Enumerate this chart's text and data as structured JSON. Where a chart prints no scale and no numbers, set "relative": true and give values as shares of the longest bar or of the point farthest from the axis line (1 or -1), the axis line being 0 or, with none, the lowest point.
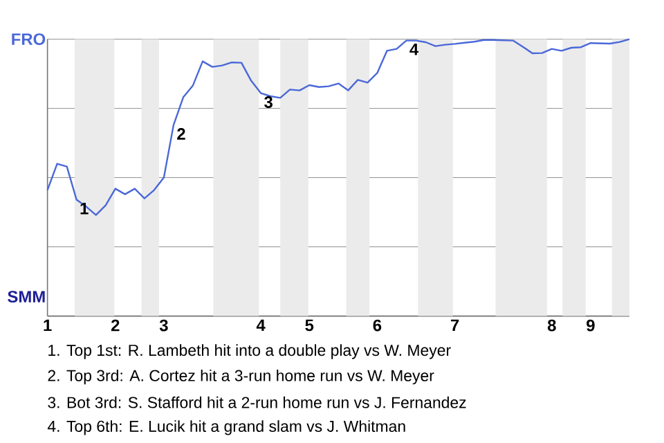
{
  "chart_data": {
    "type": "line",
    "relative": true,
    "categories": [
      "1",
      null,
      null,
      null,
      null,
      null,
      null,
      "2",
      null,
      null,
      null,
      null,
      "3",
      null,
      null,
      null,
      null,
      null,
      null,
      null,
      null,
      null,
      "4",
      null,
      null,
      null,
      null,
      "5",
      null,
      null,
      null,
      null,
      null,
      null,
      "6",
      null,
      null,
      null,
      null,
      null,
      null,
      null,
      "7",
      null,
      null,
      null,
      null,
      null,
      null,
      null,
      null,
      null,
      "8",
      null,
      null,
      null,
      "9",
      null,
      null,
      null,
      null
    ],
    "series": [
      {
        "color": "#4a68d8",
        "values": [
          0.455,
          0.55,
          0.54,
          0.42,
          0.395,
          0.365,
          0.4,
          0.46,
          0.44,
          0.46,
          0.425,
          0.455,
          0.5,
          0.69,
          0.79,
          0.833,
          0.92,
          0.9,
          0.905,
          0.916,
          0.915,
          0.85,
          0.805,
          0.794,
          0.788,
          0.818,
          0.815,
          0.834,
          0.827,
          0.83,
          0.84,
          0.815,
          0.853,
          0.843,
          0.878,
          0.958,
          0.965,
          0.995,
          0.995,
          0.989,
          0.975,
          0.98,
          0.983,
          0.987,
          0.991,
          0.997,
          0.997,
          0.996,
          0.995,
          0.973,
          0.949,
          0.95,
          0.965,
          0.958,
          0.969,
          0.971,
          0.986,
          0.985,
          0.984,
          0.99,
          1
        ]
      }
    ],
    "grid": "y",
    "marker": "none",
    "line_style": "solid",
    "annotations": [
      "FRO",
      "SMM",
      {
        "text": "1",
        "y": 0.42
      },
      {
        "text": "2",
        "y": 0.69
      },
      {
        "text": "3",
        "y": 0.805
      },
      {
        "text": "4",
        "y": 0.995
      },
      "1. Top 1st: R. Lambeth hit into a double play vs W. Meyer",
      "2. Top 3rd: A. Cortez hit a 3-run home run vs W. Meyer",
      "3. Bot 3rd: S. Stafford hit a 2-run home run vs J. Fernandez",
      "4. Top 6th: E. Lucik hit a grand slam vs J. Whitman"
    ]
  }
}
